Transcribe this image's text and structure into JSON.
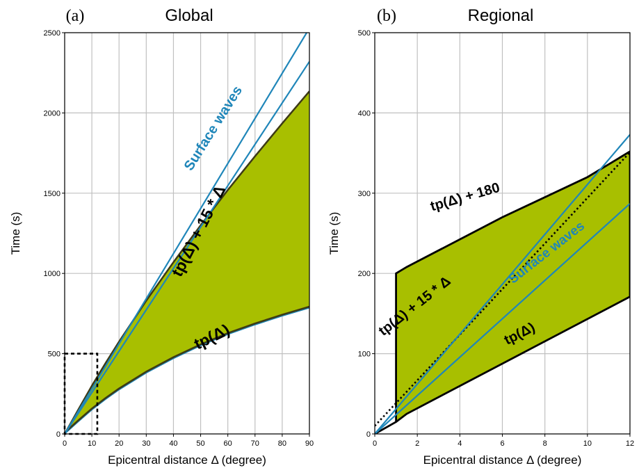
{
  "chart_data": [
    {
      "type": "area",
      "panel_tag": "(a)",
      "title": "Global",
      "xlabel": "Epicentral distance Δ (degree)",
      "ylabel": "Time (s)",
      "xlim": [
        0,
        90
      ],
      "ylim": [
        0,
        2500
      ],
      "xticks": [
        0,
        10,
        20,
        30,
        40,
        50,
        60,
        70,
        80,
        90
      ],
      "yticks": [
        0,
        500,
        1000,
        1500,
        2000,
        2500
      ],
      "grid": true,
      "colors": {
        "fill": "#a8bf00",
        "band_edge": "#3d3a15",
        "surface_waves": "#1f86b9",
        "grid": "#c0c0c0"
      },
      "band": {
        "lower_name": "tp(Δ)",
        "upper_name": "tp(Δ) + 15 * Δ",
        "x": [
          0,
          5,
          10,
          15,
          20,
          30,
          40,
          50,
          60,
          70,
          80,
          90
        ],
        "lower": [
          0,
          76,
          150,
          215,
          275,
          380,
          470,
          550,
          620,
          680,
          735,
          785
        ],
        "upper": [
          0,
          151,
          300,
          440,
          575,
          830,
          1070,
          1300,
          1520,
          1730,
          1935,
          2135
        ]
      },
      "series": [
        {
          "name": "Surface waves",
          "x": [
            0,
            89
          ],
          "y": [
            0,
            2500
          ]
        },
        {
          "name": "",
          "x": [
            0,
            90
          ],
          "y": [
            0,
            2320
          ]
        }
      ],
      "inset_box": {
        "x": [
          0,
          12
        ],
        "y": [
          0,
          500
        ]
      },
      "annotations": [
        {
          "text": "Surface waves",
          "x": 56,
          "y": 1890,
          "angle": -58
        },
        {
          "text": "tp(Δ) + 15 * Δ",
          "x": 51,
          "y": 1250,
          "angle": -63
        },
        {
          "text": "tp(Δ)",
          "x": 55,
          "y": 575,
          "angle": -26
        }
      ]
    },
    {
      "type": "area",
      "panel_tag": "(b)",
      "title": "Regional",
      "xlabel": "Epicentral distance Δ (degree)",
      "ylabel": "Time (s)",
      "xlim": [
        0,
        12
      ],
      "ylim": [
        0,
        500
      ],
      "xticks": [
        0,
        2,
        4,
        6,
        8,
        10,
        12
      ],
      "yticks": [
        0,
        100,
        200,
        300,
        400,
        500
      ],
      "grid": true,
      "colors": {
        "fill": "#a8bf00",
        "band_edge": "#000000",
        "surface_waves": "#1f86b9",
        "grid": "#c0c0c0"
      },
      "band": {
        "lower_name": "tp(Δ)",
        "upper_name": "tp(Δ) + 180",
        "polygon": [
          [
            0,
            0
          ],
          [
            1,
            15
          ],
          [
            1.5,
            25
          ],
          [
            12,
            171
          ],
          [
            12,
            352
          ],
          [
            10,
            320
          ],
          [
            6,
            270
          ],
          [
            1.5,
            208
          ],
          [
            1,
            200
          ],
          [
            1,
            15
          ]
        ]
      },
      "series": [
        {
          "name": "tp(Δ) + 15 * Δ",
          "x": [
            0,
            12
          ],
          "y": [
            10,
            351
          ],
          "style": "dotted"
        },
        {
          "name": "Surface waves",
          "x": [
            0,
            12
          ],
          "y": [
            0,
            373
          ]
        },
        {
          "name": "",
          "x": [
            0,
            12
          ],
          "y": [
            0,
            287
          ]
        }
      ],
      "annotations": [
        {
          "text": "tp(Δ) + 180",
          "x": 4.3,
          "y": 290,
          "angle": -16
        },
        {
          "text": "tp(Δ) + 15 * Δ",
          "x": 2.0,
          "y": 155,
          "angle": -38
        },
        {
          "text": "Surface waves",
          "x": 8.2,
          "y": 222,
          "angle": -38
        },
        {
          "text": "tp(Δ)",
          "x": 6.9,
          "y": 120,
          "angle": -27
        }
      ]
    }
  ]
}
